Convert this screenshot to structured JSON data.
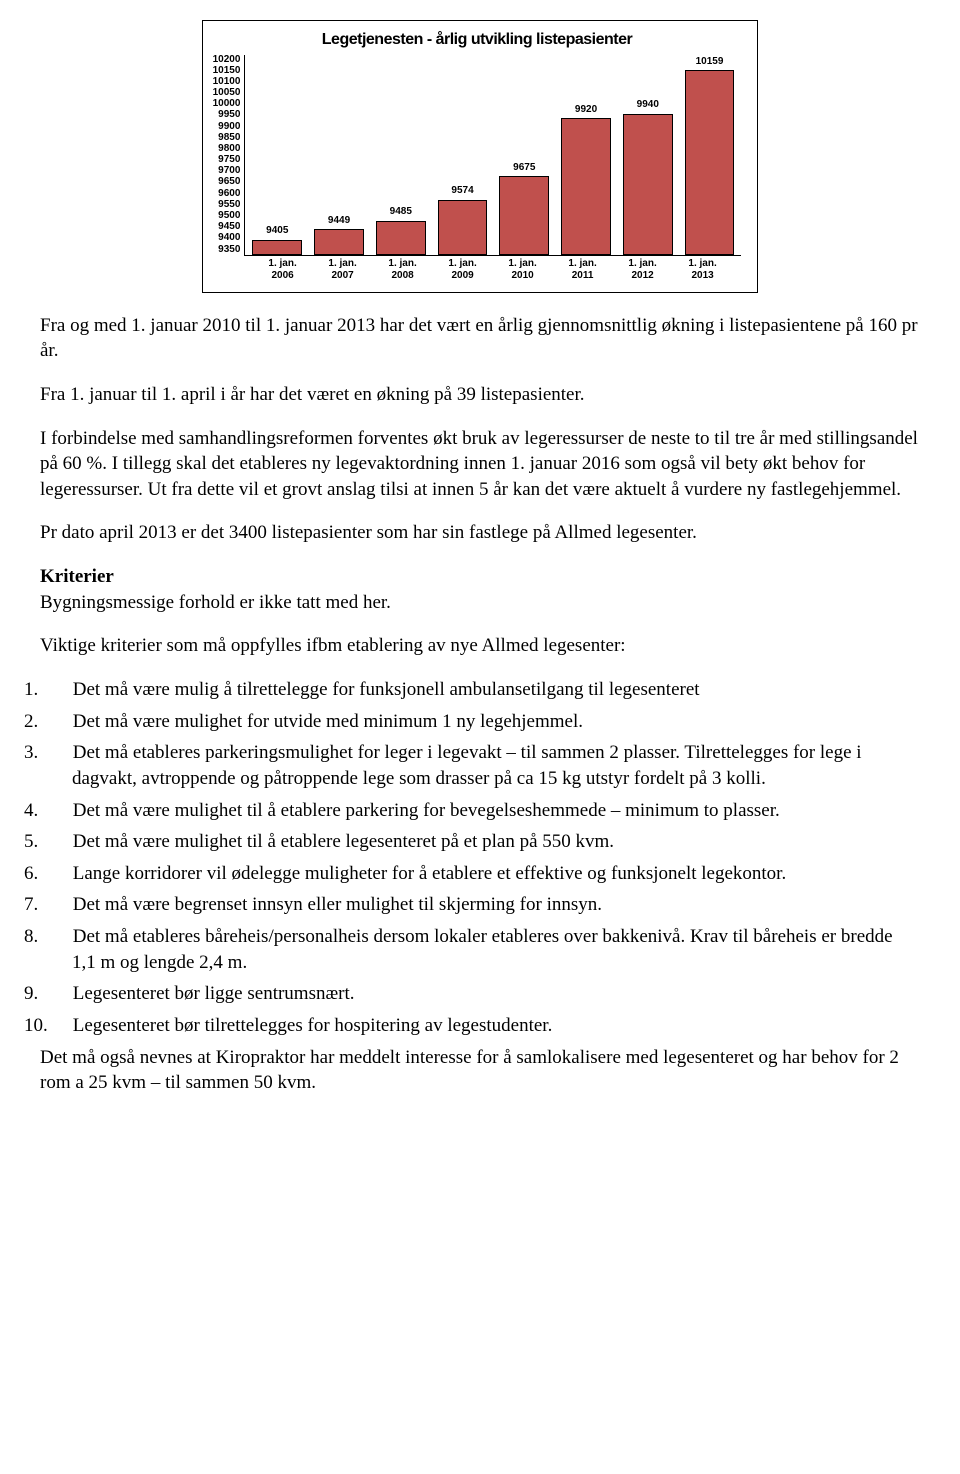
{
  "chart": {
    "type": "bar",
    "title": "Legetjenesten - årlig utvikling listepasienter",
    "title_fontsize": 16,
    "background_color": "#ffffff",
    "border_color": "#000000",
    "bar_color": "#c0504d",
    "bar_border": "#000000",
    "label_font": "Arial",
    "label_fontsize": 10,
    "label_weight": "bold",
    "ylim_min": 9350,
    "ylim_max": 10200,
    "ytick_step": 50,
    "yticks": [
      10200,
      10150,
      10100,
      10050,
      10000,
      9950,
      9900,
      9850,
      9800,
      9750,
      9700,
      9650,
      9600,
      9550,
      9500,
      9450,
      9400,
      9350
    ],
    "categories": [
      "1. jan. 2006",
      "1. jan. 2007",
      "1. jan. 2008",
      "1. jan. 2009",
      "1. jan. 2010",
      "1. jan. 2011",
      "1. jan. 2012",
      "1. jan. 2013"
    ],
    "values": [
      9405,
      9449,
      9485,
      9574,
      9675,
      9920,
      9940,
      10159
    ],
    "bar_width": 0.7
  },
  "body": {
    "p1": "Fra og med 1. januar 2010 til 1. januar 2013 har det vært en årlig gjennomsnittlig økning i listepasientene på 160 pr år.",
    "p2": "Fra 1. januar til 1. april i år har det været en økning på 39 listepasienter.",
    "p3": "I forbindelse med samhandlingsreformen forventes økt bruk av legeressurser de neste to til tre år med stillingsandel på 60 %. I tillegg skal det etableres ny legevaktordning innen 1. januar 2016 som også vil bety økt behov for legeressurser. Ut fra dette vil et grovt anslag tilsi at innen 5 år kan det være aktuelt å vurdere ny fastlegehjemmel.",
    "p4": "Pr dato april 2013 er det 3400 listepasienter som har sin fastlege på Allmed legesenter.",
    "kriterier_h": "Kriterier",
    "kriterier_sub": "Bygningsmessige forhold er ikke tatt med her.",
    "p5": "Viktige kriterier som må oppfylles ifbm etablering av nye Allmed legesenter:",
    "list": [
      "Det må være mulig å tilrettelegge for funksjonell ambulansetilgang til legesenteret",
      "Det må være mulighet for utvide med minimum 1 ny legehjemmel.",
      "Det må etableres parkeringsmulighet for leger i legevakt – til sammen 2 plasser. Tilrettelegges for lege i dagvakt, avtroppende og påtroppende lege som drasser på ca 15 kg utstyr fordelt på 3 kolli.",
      "Det må være mulighet til å etablere parkering for bevegelseshemmede – minimum to plasser.",
      "Det må være mulighet til å etablere legesenteret på et plan på 550 kvm.",
      "Lange korridorer vil ødelegge muligheter for å etablere et effektive og funksjonelt legekontor.",
      "Det må være begrenset innsyn eller mulighet til skjerming for innsyn.",
      "Det må etableres båreheis/personalheis dersom lokaler etableres over bakkenivå. Krav til båreheis er bredde 1,1 m og lengde 2,4 m.",
      "Legesenteret bør ligge sentrumsnært.",
      "Legesenteret bør tilrettelegges for hospitering av legestudenter."
    ],
    "p6": "Det må også nevnes at Kiropraktor har meddelt interesse for å samlokalisere med legesenteret og har behov for 2 rom a 25 kvm – til sammen 50 kvm."
  }
}
